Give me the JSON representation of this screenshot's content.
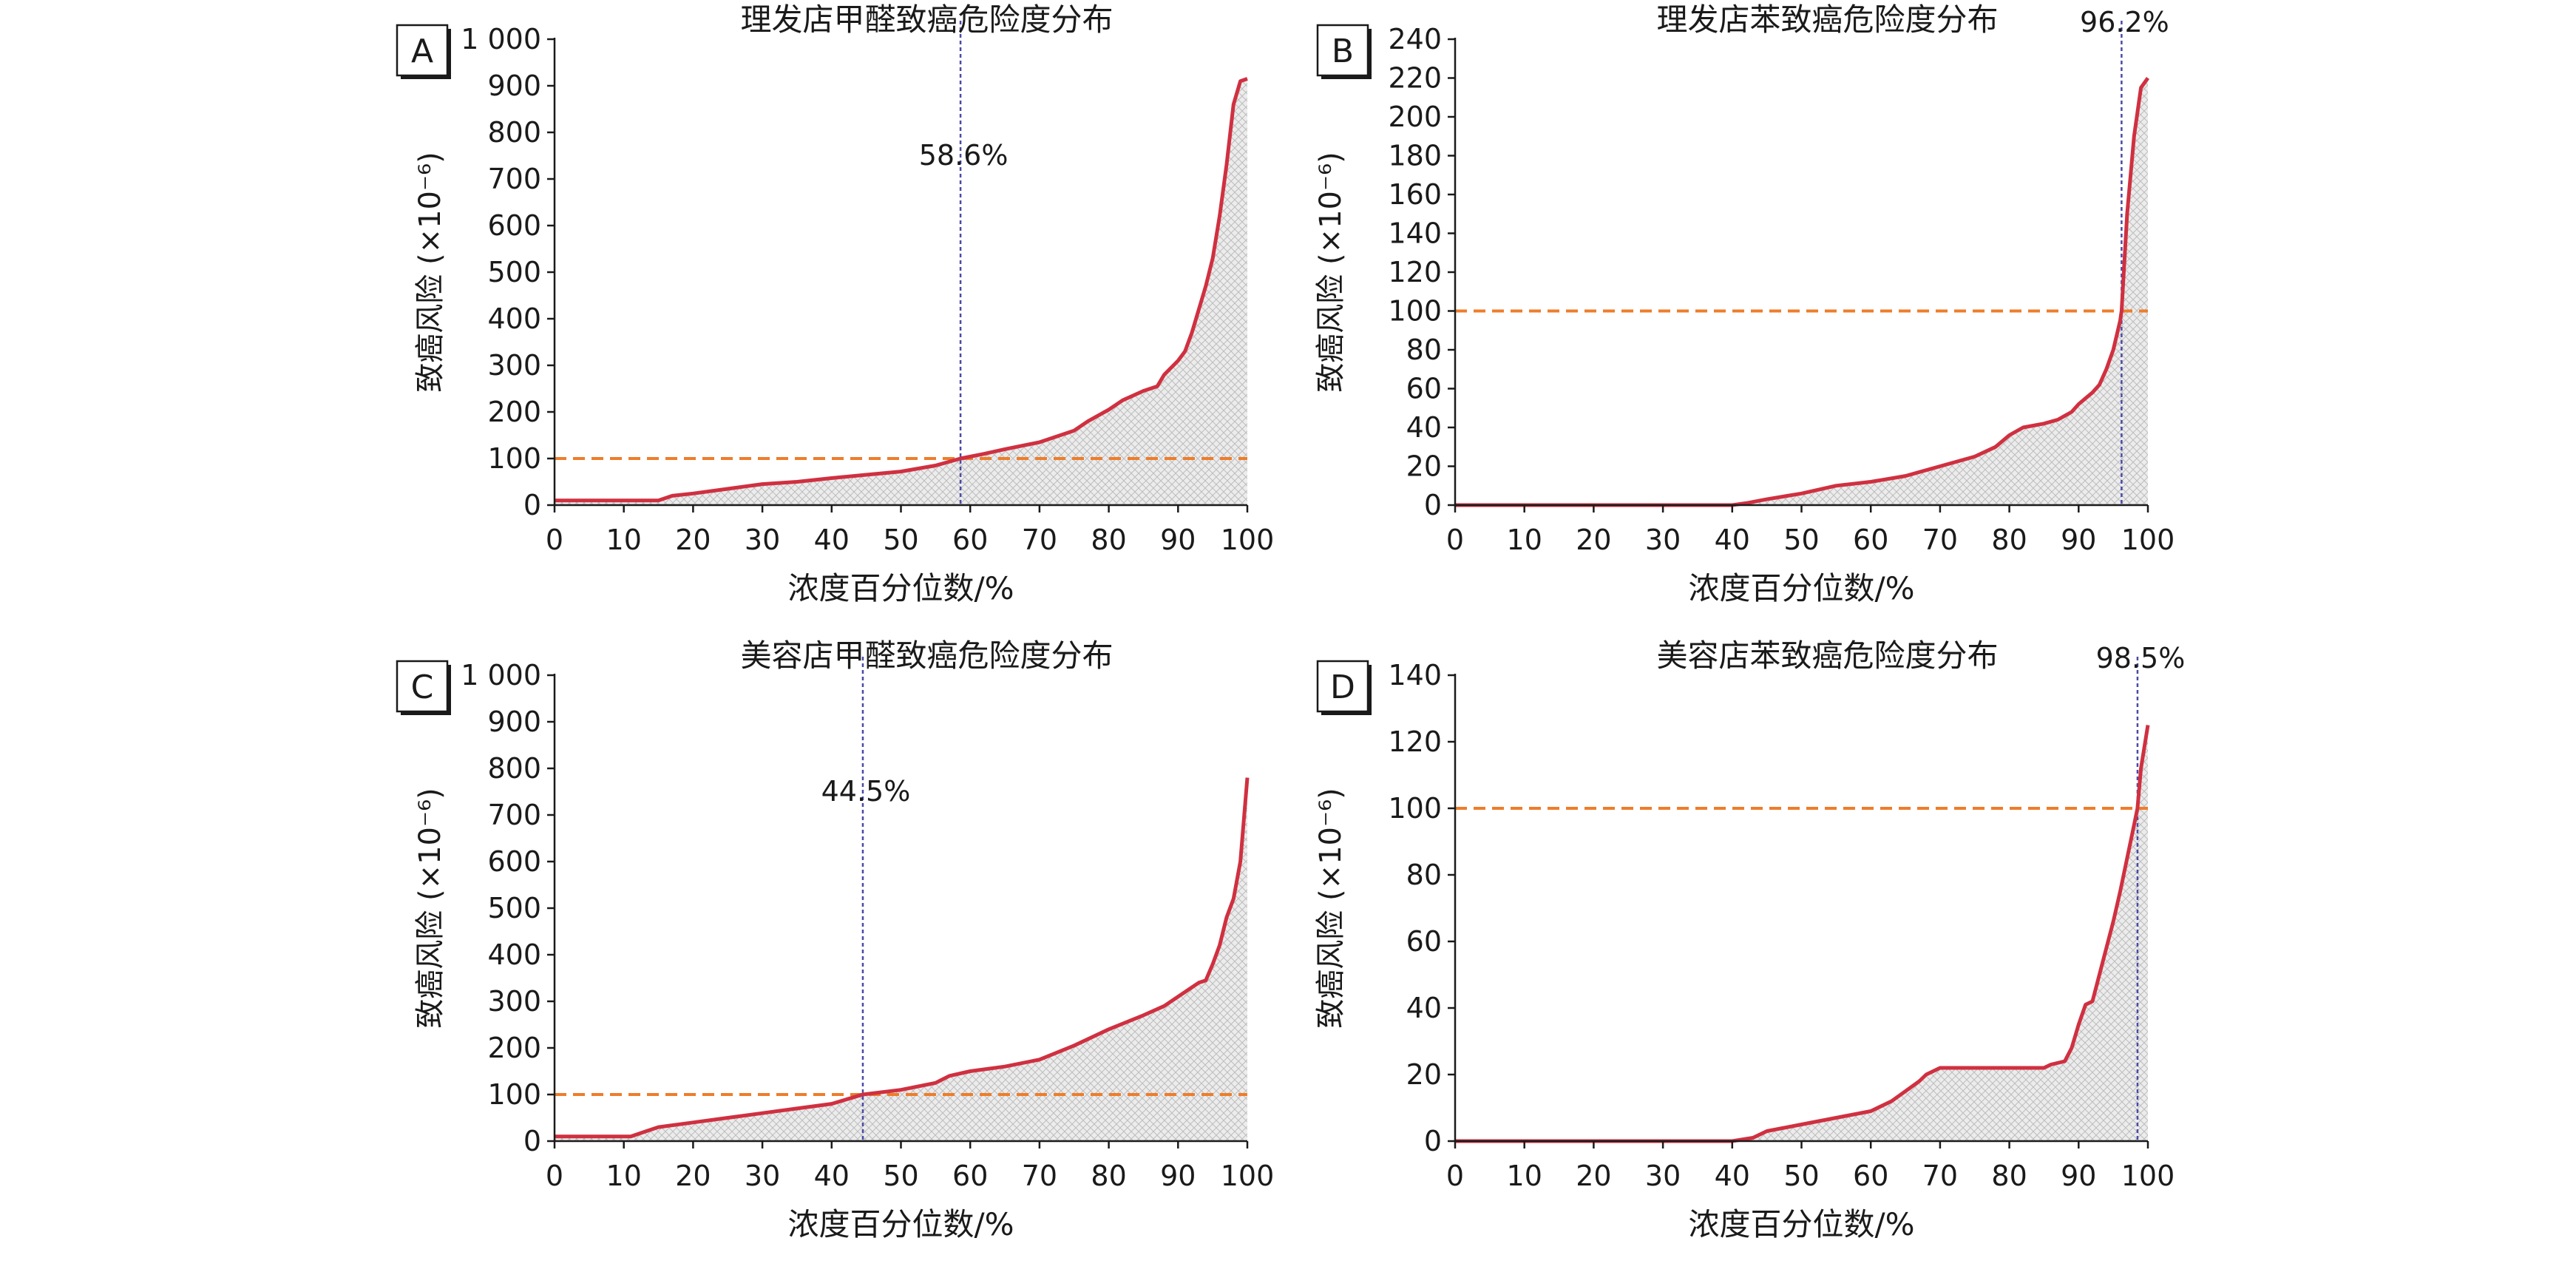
{
  "chart_data": [
    {
      "panel": "A",
      "type": "area",
      "title": "理发店甲醛致癌危险度分布",
      "xlabel": "浓度百分位数/%",
      "ylabel": "致癌风险 (×10⁻⁶)",
      "xlim": [
        0,
        100
      ],
      "ylim": [
        0,
        1000
      ],
      "x_ticks": [
        0,
        10,
        20,
        30,
        40,
        50,
        60,
        70,
        80,
        90,
        100
      ],
      "y_ticks": [
        0,
        100,
        200,
        300,
        400,
        500,
        600,
        700,
        800,
        900,
        1000
      ],
      "x_tick_labels": [
        "0",
        "10",
        "20",
        "30",
        "40",
        "50",
        "60",
        "70",
        "80",
        "90",
        "100"
      ],
      "y_tick_labels": [
        "0",
        "100",
        "200",
        "300",
        "400",
        "500",
        "600",
        "700",
        "800",
        "900",
        "1 000"
      ],
      "threshold": 100,
      "marker_x": 58.6,
      "marker_label": "58.6%",
      "marker_label_pos": "mid",
      "series": [
        {
          "x": [
            0,
            15,
            17,
            20,
            25,
            30,
            35,
            40,
            45,
            50,
            55,
            58.6,
            62,
            65,
            70,
            75,
            77,
            80,
            82,
            85,
            87,
            88,
            90,
            91,
            92,
            93,
            94,
            95,
            96,
            97,
            98,
            99,
            100
          ],
          "y": [
            10,
            10,
            20,
            25,
            35,
            45,
            50,
            58,
            65,
            72,
            85,
            100,
            110,
            120,
            135,
            160,
            180,
            205,
            225,
            245,
            255,
            280,
            310,
            330,
            370,
            420,
            470,
            530,
            620,
            730,
            860,
            910,
            915
          ]
        }
      ]
    },
    {
      "panel": "B",
      "type": "area",
      "title": "理发店苯致癌危险度分布",
      "xlabel": "浓度百分位数/%",
      "ylabel": "致癌风险 (×10⁻⁶)",
      "xlim": [
        0,
        100
      ],
      "ylim": [
        0,
        240
      ],
      "x_ticks": [
        0,
        10,
        20,
        30,
        40,
        50,
        60,
        70,
        80,
        90,
        100
      ],
      "y_ticks": [
        0,
        20,
        40,
        60,
        80,
        100,
        120,
        140,
        160,
        180,
        200,
        220,
        240
      ],
      "x_tick_labels": [
        "0",
        "10",
        "20",
        "30",
        "40",
        "50",
        "60",
        "70",
        "80",
        "90",
        "100"
      ],
      "y_tick_labels": [
        "0",
        "20",
        "40",
        "60",
        "80",
        "100",
        "120",
        "140",
        "160",
        "180",
        "200",
        "220",
        "240"
      ],
      "threshold": 100,
      "marker_x": 96.2,
      "marker_label": "96.2%",
      "marker_label_pos": "top",
      "series": [
        {
          "x": [
            0,
            40,
            42,
            45,
            50,
            55,
            60,
            65,
            70,
            75,
            78,
            80,
            82,
            85,
            87,
            89,
            90,
            91,
            92,
            93,
            94,
            95,
            96,
            96.2,
            97,
            98,
            99,
            100
          ],
          "y": [
            0,
            0,
            1,
            3,
            6,
            10,
            12,
            15,
            20,
            25,
            30,
            36,
            40,
            42,
            44,
            48,
            52,
            55,
            58,
            62,
            70,
            80,
            95,
            100,
            150,
            190,
            215,
            220
          ]
        }
      ]
    },
    {
      "panel": "C",
      "type": "area",
      "title": "美容店甲醛致癌危险度分布",
      "xlabel": "浓度百分位数/%",
      "ylabel": "致癌风险 (×10⁻⁶)",
      "xlim": [
        0,
        100
      ],
      "ylim": [
        0,
        1000
      ],
      "x_ticks": [
        0,
        10,
        20,
        30,
        40,
        50,
        60,
        70,
        80,
        90,
        100
      ],
      "y_ticks": [
        0,
        100,
        200,
        300,
        400,
        500,
        600,
        700,
        800,
        900,
        1000
      ],
      "x_tick_labels": [
        "0",
        "10",
        "20",
        "30",
        "40",
        "50",
        "60",
        "70",
        "80",
        "90",
        "100"
      ],
      "y_tick_labels": [
        "0",
        "100",
        "200",
        "300",
        "400",
        "500",
        "600",
        "700",
        "800",
        "900",
        "1 000"
      ],
      "threshold": 100,
      "marker_x": 44.5,
      "marker_label": "44.5%",
      "marker_label_pos": "mid",
      "series": [
        {
          "x": [
            0,
            11,
            13,
            15,
            20,
            25,
            30,
            35,
            40,
            44.5,
            50,
            55,
            57,
            60,
            65,
            70,
            75,
            80,
            85,
            88,
            90,
            92,
            93,
            94,
            95,
            96,
            97,
            98,
            99,
            100
          ],
          "y": [
            10,
            10,
            20,
            30,
            40,
            50,
            60,
            70,
            80,
            100,
            110,
            125,
            140,
            150,
            160,
            175,
            205,
            240,
            270,
            290,
            310,
            330,
            340,
            345,
            380,
            420,
            480,
            520,
            600,
            780
          ]
        }
      ]
    },
    {
      "panel": "D",
      "type": "area",
      "title": "美容店苯致癌危险度分布",
      "xlabel": "浓度百分位数/%",
      "ylabel": "致癌风险 (×10⁻⁶)",
      "xlim": [
        0,
        100
      ],
      "ylim": [
        0,
        140
      ],
      "x_ticks": [
        0,
        10,
        20,
        30,
        40,
        50,
        60,
        70,
        80,
        90,
        100
      ],
      "y_ticks": [
        0,
        20,
        40,
        60,
        80,
        100,
        120,
        140
      ],
      "x_tick_labels": [
        "0",
        "10",
        "20",
        "30",
        "40",
        "50",
        "60",
        "70",
        "80",
        "90",
        "100"
      ],
      "y_tick_labels": [
        "0",
        "20",
        "40",
        "60",
        "80",
        "100",
        "120",
        "140"
      ],
      "threshold": 100,
      "marker_x": 98.5,
      "marker_label": "98.5%",
      "marker_label_pos": "top",
      "series": [
        {
          "x": [
            0,
            40,
            43,
            45,
            50,
            55,
            60,
            63,
            65,
            67,
            68,
            70,
            75,
            80,
            85,
            86,
            88,
            89,
            90,
            91,
            92,
            93,
            94,
            95,
            96,
            97,
            98,
            98.5,
            99,
            100
          ],
          "y": [
            0,
            0,
            1,
            3,
            5,
            7,
            9,
            12,
            15,
            18,
            20,
            22,
            22,
            22,
            22,
            23,
            24,
            28,
            35,
            41,
            42,
            50,
            58,
            66,
            75,
            85,
            95,
            100,
            112,
            125
          ]
        }
      ]
    }
  ],
  "colors": {
    "curve": "#d03040",
    "threshold": "#ee7d2a",
    "marker": "#4a4aa8",
    "fill": "#dcdcdc",
    "axis": "#1a1a1a"
  }
}
